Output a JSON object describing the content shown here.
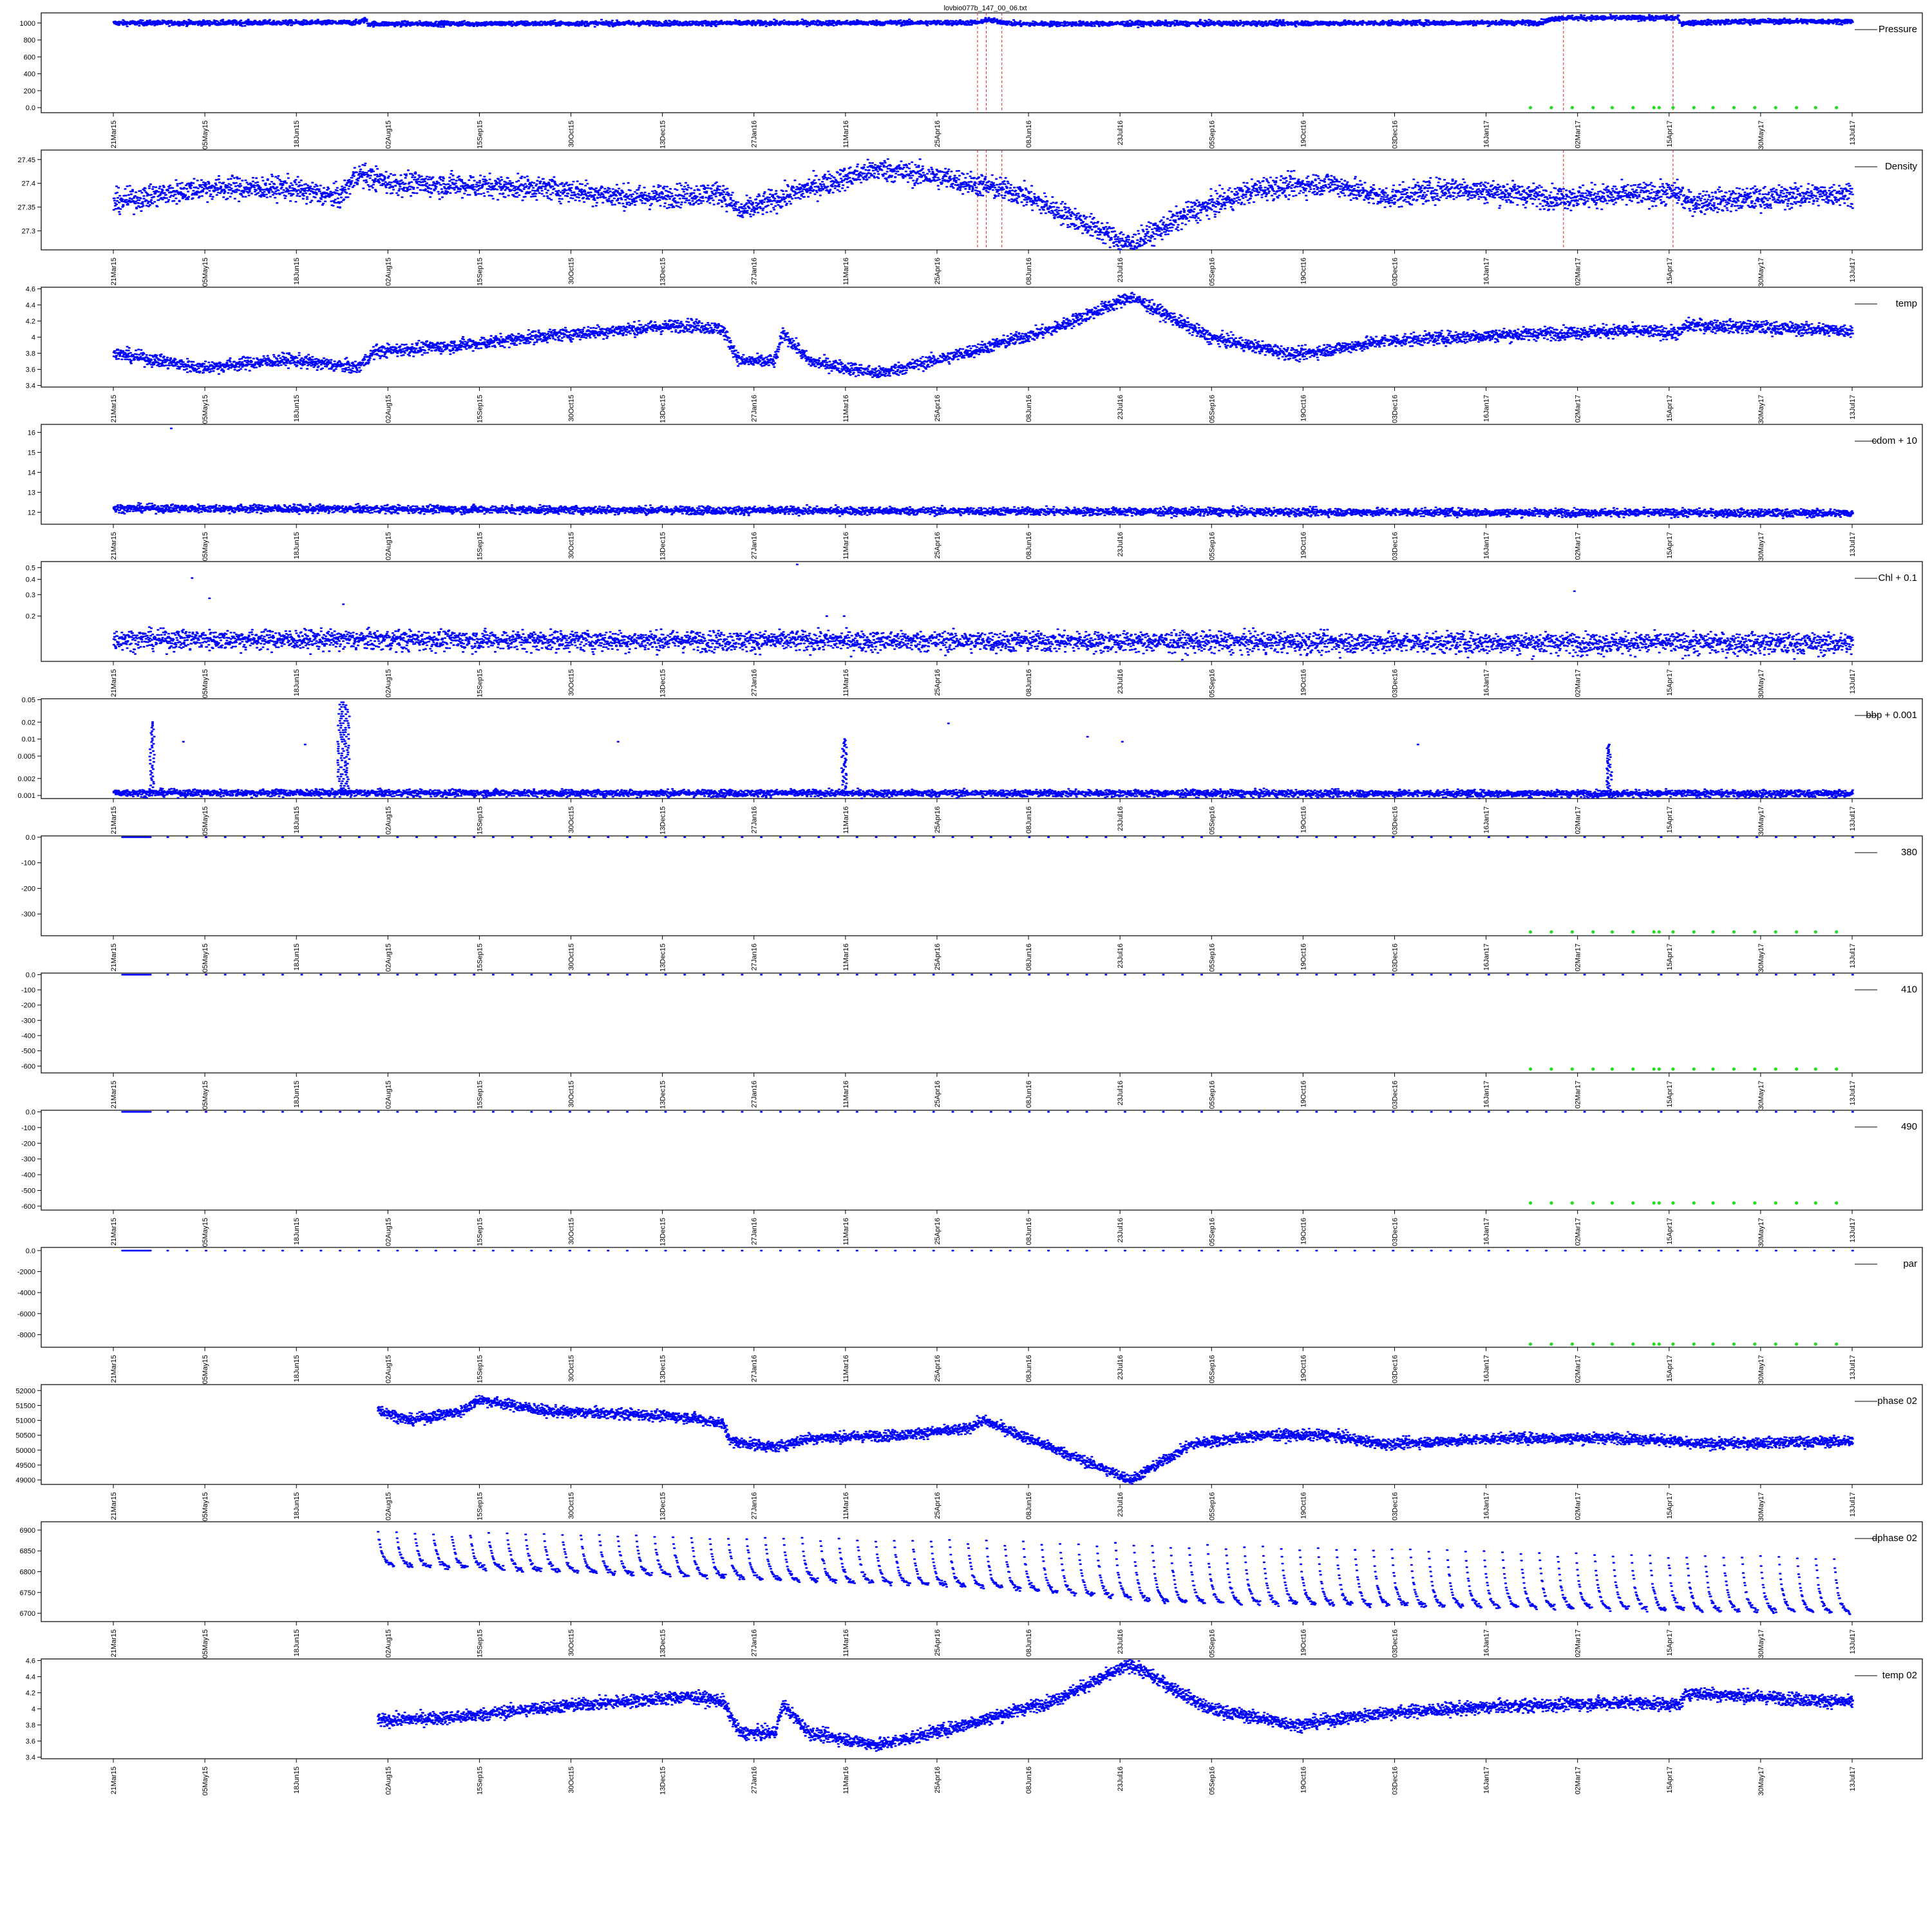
{
  "figure_title": "lovbio077b_147_00_06.txt",
  "x_dates": [
    "21Mar15",
    "05May15",
    "18Jun15",
    "02Aug15",
    "15Sep15",
    "30Oct15",
    "13Dec15",
    "27Jan16",
    "11Mar16",
    "25Apr16",
    "08Jun16",
    "23Jul16",
    "05Sep16",
    "19Oct16",
    "03Dec16",
    "16Jan17",
    "02Mar17",
    "15Apr17",
    "30May17",
    "13Jul17"
  ],
  "colors": {
    "series": "#0000ff",
    "flag": "#22dd22",
    "event": "#dd2222",
    "axis": "#000000",
    "frame": "#000000"
  },
  "chart_data": [
    {
      "type": "scatter",
      "legend": "Pressure",
      "ylim": [
        -60,
        1120
      ],
      "yticks": [
        0,
        200,
        400,
        600,
        800,
        1000
      ],
      "base": [
        [
          0,
          1000
        ],
        [
          0.14,
          1005
        ],
        [
          0.145,
          1040
        ],
        [
          0.146,
          990
        ],
        [
          0.5,
          1005
        ],
        [
          0.5,
          1040
        ],
        [
          0.52,
          990
        ],
        [
          0.82,
          1005
        ],
        [
          0.83,
          1060
        ],
        [
          0.9,
          1060
        ],
        [
          0.9,
          1000
        ],
        [
          0.95,
          1020
        ],
        [
          1,
          1020
        ]
      ],
      "noise": 15,
      "start": 0,
      "event_lines": [
        0.497,
        0.502,
        0.511,
        0.834,
        0.897
      ],
      "flags_y": 0,
      "flags_x": [
        0.815,
        0.827,
        0.839,
        0.851,
        0.862,
        0.874,
        0.886,
        0.889,
        0.897,
        0.909,
        0.92,
        0.932,
        0.944,
        0.956,
        0.968,
        0.979,
        0.991
      ]
    },
    {
      "type": "scatter",
      "legend": "Density",
      "ylim": [
        27.26,
        27.47
      ],
      "yticks": [
        27.3,
        27.35,
        27.4,
        27.45
      ],
      "base": [
        [
          0,
          27.36
        ],
        [
          0.05,
          27.39
        ],
        [
          0.1,
          27.39
        ],
        [
          0.13,
          27.37
        ],
        [
          0.14,
          27.42
        ],
        [
          0.16,
          27.4
        ],
        [
          0.25,
          27.39
        ],
        [
          0.3,
          27.37
        ],
        [
          0.35,
          27.38
        ],
        [
          0.36,
          27.34
        ],
        [
          0.4,
          27.39
        ],
        [
          0.44,
          27.43
        ],
        [
          0.48,
          27.41
        ],
        [
          0.52,
          27.38
        ],
        [
          0.55,
          27.33
        ],
        [
          0.585,
          27.27
        ],
        [
          0.62,
          27.34
        ],
        [
          0.66,
          27.39
        ],
        [
          0.7,
          27.4
        ],
        [
          0.73,
          27.37
        ],
        [
          0.77,
          27.39
        ],
        [
          0.83,
          27.37
        ],
        [
          0.9,
          27.38
        ],
        [
          0.905,
          27.36
        ],
        [
          1,
          27.38
        ]
      ],
      "noise": 0.012,
      "start": 0,
      "event_lines": [
        0.497,
        0.502,
        0.511,
        0.834,
        0.897
      ]
    },
    {
      "type": "scatter",
      "legend": "temp",
      "ylim": [
        3.38,
        4.62
      ],
      "yticks": [
        3.4,
        3.6,
        3.8,
        4.0,
        4.2,
        4.4,
        4.6
      ],
      "base": [
        [
          0,
          3.8
        ],
        [
          0.05,
          3.62
        ],
        [
          0.1,
          3.72
        ],
        [
          0.14,
          3.62
        ],
        [
          0.15,
          3.82
        ],
        [
          0.2,
          3.9
        ],
        [
          0.25,
          4.02
        ],
        [
          0.33,
          4.15
        ],
        [
          0.35,
          4.1
        ],
        [
          0.36,
          3.7
        ],
        [
          0.38,
          3.7
        ],
        [
          0.385,
          4.05
        ],
        [
          0.4,
          3.7
        ],
        [
          0.44,
          3.55
        ],
        [
          0.48,
          3.75
        ],
        [
          0.54,
          4.1
        ],
        [
          0.585,
          4.5
        ],
        [
          0.63,
          4.0
        ],
        [
          0.68,
          3.78
        ],
        [
          0.73,
          3.95
        ],
        [
          0.8,
          4.03
        ],
        [
          0.87,
          4.08
        ],
        [
          0.9,
          4.05
        ],
        [
          0.905,
          4.15
        ],
        [
          1,
          4.08
        ]
      ],
      "noise": 0.04,
      "start": 0
    },
    {
      "type": "scatter",
      "legend": "cdom + 10",
      "ylim": [
        11.4,
        16.4
      ],
      "yticks": [
        12,
        13,
        14,
        15,
        16
      ],
      "base": [
        [
          0,
          12.2
        ],
        [
          0.5,
          12.05
        ],
        [
          1,
          11.95
        ]
      ],
      "noise": 0.1,
      "start": 0,
      "outliers": [
        [
          0.033,
          16.2
        ]
      ]
    },
    {
      "type": "scatter",
      "legend": "Chl + 0.1",
      "ylim": [
        0.085,
        0.56
      ],
      "log": true,
      "yticks": [
        0.2,
        0.3,
        0.4,
        0.5
      ],
      "base": [
        [
          0,
          0.13
        ],
        [
          1,
          0.12
        ]
      ],
      "noise": 0.012,
      "start": 0,
      "outliers": [
        [
          0.045,
          0.41
        ],
        [
          0.055,
          0.28
        ],
        [
          0.393,
          0.53
        ],
        [
          0.132,
          0.25
        ],
        [
          0.84,
          0.32
        ],
        [
          0.41,
          0.2
        ],
        [
          0.42,
          0.2
        ]
      ]
    },
    {
      "type": "scatter",
      "legend": "bbp + 0.001",
      "ylim": [
        0.00088,
        0.052
      ],
      "log": true,
      "yticks": [
        0.001,
        0.002,
        0.005,
        0.01,
        0.02,
        0.05
      ],
      "base": [
        [
          0,
          0.00112
        ],
        [
          1,
          0.00108
        ]
      ],
      "noise": 8e-05,
      "start": 0,
      "spikes": [
        [
          0.022,
          0.02
        ],
        [
          0.13,
          0.045
        ],
        [
          0.132,
          0.045
        ],
        [
          0.134,
          0.04
        ],
        [
          0.42,
          0.01
        ],
        [
          0.86,
          0.008
        ]
      ],
      "outliers": [
        [
          0.48,
          0.019
        ],
        [
          0.56,
          0.011
        ],
        [
          0.11,
          0.008
        ],
        [
          0.04,
          0.009
        ],
        [
          0.29,
          0.009
        ],
        [
          0.58,
          0.009
        ],
        [
          0.75,
          0.008
        ]
      ]
    },
    {
      "type": "scatter",
      "legend": "380",
      "ylim": [
        -385,
        5
      ],
      "yticks": [
        -300,
        -200,
        -100,
        0
      ],
      "sparse_y": 0,
      "start": 0,
      "flags_y": -370,
      "flags_x": [
        0.815,
        0.827,
        0.839,
        0.851,
        0.862,
        0.874,
        0.886,
        0.889,
        0.897,
        0.909,
        0.92,
        0.932,
        0.944,
        0.956,
        0.968,
        0.979,
        0.991
      ]
    },
    {
      "type": "scatter",
      "legend": "410",
      "ylim": [
        -645,
        10
      ],
      "yticks": [
        -600,
        -500,
        -400,
        -300,
        -200,
        -100,
        0
      ],
      "sparse_y": 0,
      "start": 0,
      "flags_y": -620,
      "flags_x": [
        0.815,
        0.827,
        0.839,
        0.851,
        0.862,
        0.874,
        0.886,
        0.889,
        0.897,
        0.909,
        0.92,
        0.932,
        0.944,
        0.956,
        0.968,
        0.979,
        0.991
      ]
    },
    {
      "type": "scatter",
      "legend": "490",
      "ylim": [
        -625,
        10
      ],
      "yticks": [
        -600,
        -500,
        -400,
        -300,
        -200,
        -100,
        0
      ],
      "sparse_y": 0,
      "start": 0,
      "flags_y": -580,
      "flags_x": [
        0.815,
        0.827,
        0.839,
        0.851,
        0.862,
        0.874,
        0.886,
        0.889,
        0.897,
        0.909,
        0.92,
        0.932,
        0.944,
        0.956,
        0.968,
        0.979,
        0.991
      ]
    },
    {
      "type": "scatter",
      "legend": "par",
      "ylim": [
        -9200,
        300
      ],
      "yticks": [
        -8000,
        -6000,
        -4000,
        -2000,
        0
      ],
      "sparse_y": 0,
      "start": 0,
      "flags_y": -8900,
      "flags_x": [
        0.815,
        0.827,
        0.839,
        0.851,
        0.862,
        0.874,
        0.886,
        0.889,
        0.897,
        0.909,
        0.92,
        0.932,
        0.944,
        0.956,
        0.968,
        0.979,
        0.991
      ]
    },
    {
      "type": "scatter",
      "legend": "phase 02",
      "ylim": [
        48850,
        52200
      ],
      "yticks": [
        49000,
        49500,
        50000,
        50500,
        51000,
        51500,
        52000
      ],
      "base": [
        [
          0.15,
          51400
        ],
        [
          0.17,
          51000
        ],
        [
          0.2,
          51300
        ],
        [
          0.21,
          51700
        ],
        [
          0.25,
          51300
        ],
        [
          0.3,
          51200
        ],
        [
          0.33,
          51100
        ],
        [
          0.35,
          50900
        ],
        [
          0.355,
          50300
        ],
        [
          0.38,
          50100
        ],
        [
          0.4,
          50400
        ],
        [
          0.45,
          50500
        ],
        [
          0.49,
          50700
        ],
        [
          0.5,
          51000
        ],
        [
          0.53,
          50300
        ],
        [
          0.585,
          49000
        ],
        [
          0.62,
          50200
        ],
        [
          0.66,
          50500
        ],
        [
          0.7,
          50500
        ],
        [
          0.73,
          50200
        ],
        [
          0.8,
          50400
        ],
        [
          0.87,
          50400
        ],
        [
          0.9,
          50300
        ],
        [
          0.905,
          50200
        ],
        [
          1,
          50300
        ]
      ],
      "noise": 90,
      "start": 0.152
    },
    {
      "type": "scatter",
      "legend": "dphase 02",
      "ylim": [
        6680,
        6920
      ],
      "yticks": [
        6700,
        6750,
        6800,
        6850,
        6900
      ],
      "sawtooth": {
        "start": 0.152,
        "cycles": 80,
        "top": [
          [
            0.15,
            6895
          ],
          [
            0.5,
            6870
          ],
          [
            1,
            6830
          ]
        ],
        "bottom": [
          [
            0.15,
            6815
          ],
          [
            0.5,
            6760
          ],
          [
            0.6,
            6725
          ],
          [
            1,
            6700
          ]
        ]
      },
      "start": 0.152
    },
    {
      "type": "scatter",
      "legend": "temp 02",
      "ylim": [
        3.38,
        4.62
      ],
      "yticks": [
        3.4,
        3.6,
        3.8,
        4.0,
        4.2,
        4.4,
        4.6
      ],
      "base": [
        [
          0.15,
          3.85
        ],
        [
          0.2,
          3.9
        ],
        [
          0.25,
          4.02
        ],
        [
          0.33,
          4.15
        ],
        [
          0.35,
          4.1
        ],
        [
          0.36,
          3.7
        ],
        [
          0.38,
          3.7
        ],
        [
          0.385,
          4.05
        ],
        [
          0.4,
          3.7
        ],
        [
          0.44,
          3.55
        ],
        [
          0.48,
          3.75
        ],
        [
          0.54,
          4.1
        ],
        [
          0.585,
          4.55
        ],
        [
          0.63,
          4.0
        ],
        [
          0.68,
          3.8
        ],
        [
          0.73,
          3.95
        ],
        [
          0.8,
          4.03
        ],
        [
          0.87,
          4.08
        ],
        [
          0.9,
          4.05
        ],
        [
          0.905,
          4.2
        ],
        [
          1,
          4.08
        ]
      ],
      "noise": 0.04,
      "start": 0.152
    }
  ]
}
